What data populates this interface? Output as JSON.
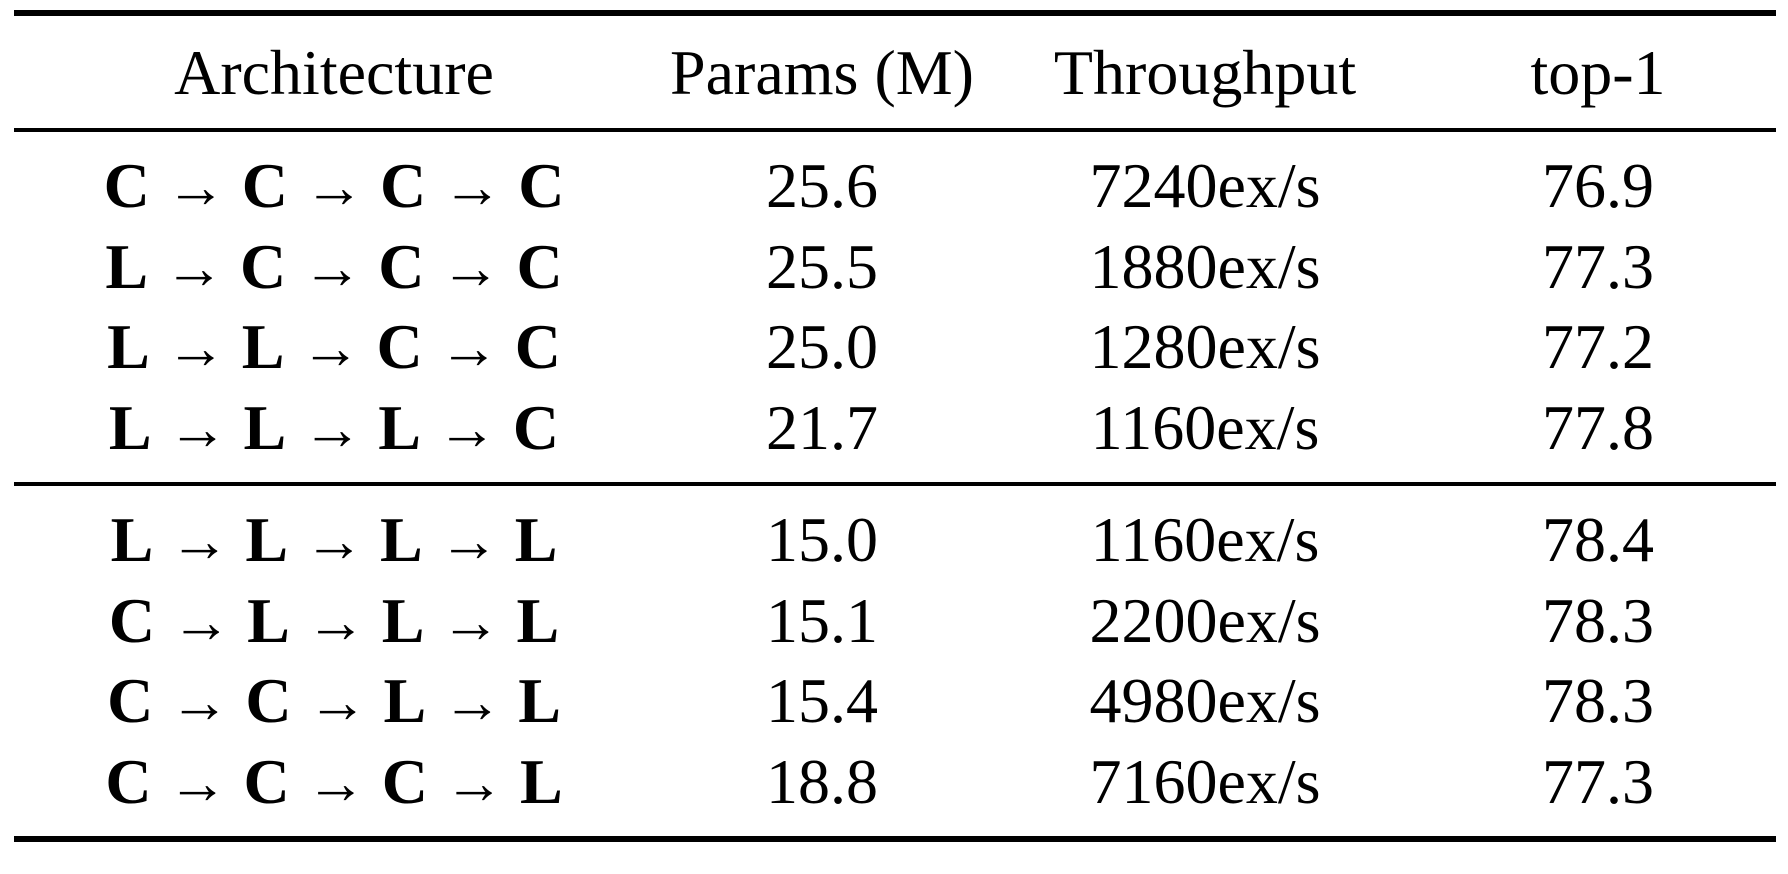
{
  "table": {
    "headers": {
      "architecture": "Architecture",
      "params": "Params (M)",
      "throughput": "Throughput",
      "top1": "top-1"
    },
    "arrow_symbol": "→",
    "groups": [
      {
        "rows": [
          {
            "architecture": [
              "C",
              "C",
              "C",
              "C"
            ],
            "params": "25.6",
            "throughput": "7240ex/s",
            "top1": "76.9"
          },
          {
            "architecture": [
              "L",
              "C",
              "C",
              "C"
            ],
            "params": "25.5",
            "throughput": "1880ex/s",
            "top1": "77.3"
          },
          {
            "architecture": [
              "L",
              "L",
              "C",
              "C"
            ],
            "params": "25.0",
            "throughput": "1280ex/s",
            "top1": "77.2"
          },
          {
            "architecture": [
              "L",
              "L",
              "L",
              "C"
            ],
            "params": "21.7",
            "throughput": "1160ex/s",
            "top1": "77.8"
          }
        ]
      },
      {
        "rows": [
          {
            "architecture": [
              "L",
              "L",
              "L",
              "L"
            ],
            "params": "15.0",
            "throughput": "1160ex/s",
            "top1": "78.4"
          },
          {
            "architecture": [
              "C",
              "L",
              "L",
              "L"
            ],
            "params": "15.1",
            "throughput": "2200ex/s",
            "top1": "78.3"
          },
          {
            "architecture": [
              "C",
              "C",
              "L",
              "L"
            ],
            "params": "15.4",
            "throughput": "4980ex/s",
            "top1": "78.3"
          },
          {
            "architecture": [
              "C",
              "C",
              "C",
              "L"
            ],
            "params": "18.8",
            "throughput": "7160ex/s",
            "top1": "77.3"
          }
        ]
      }
    ]
  }
}
